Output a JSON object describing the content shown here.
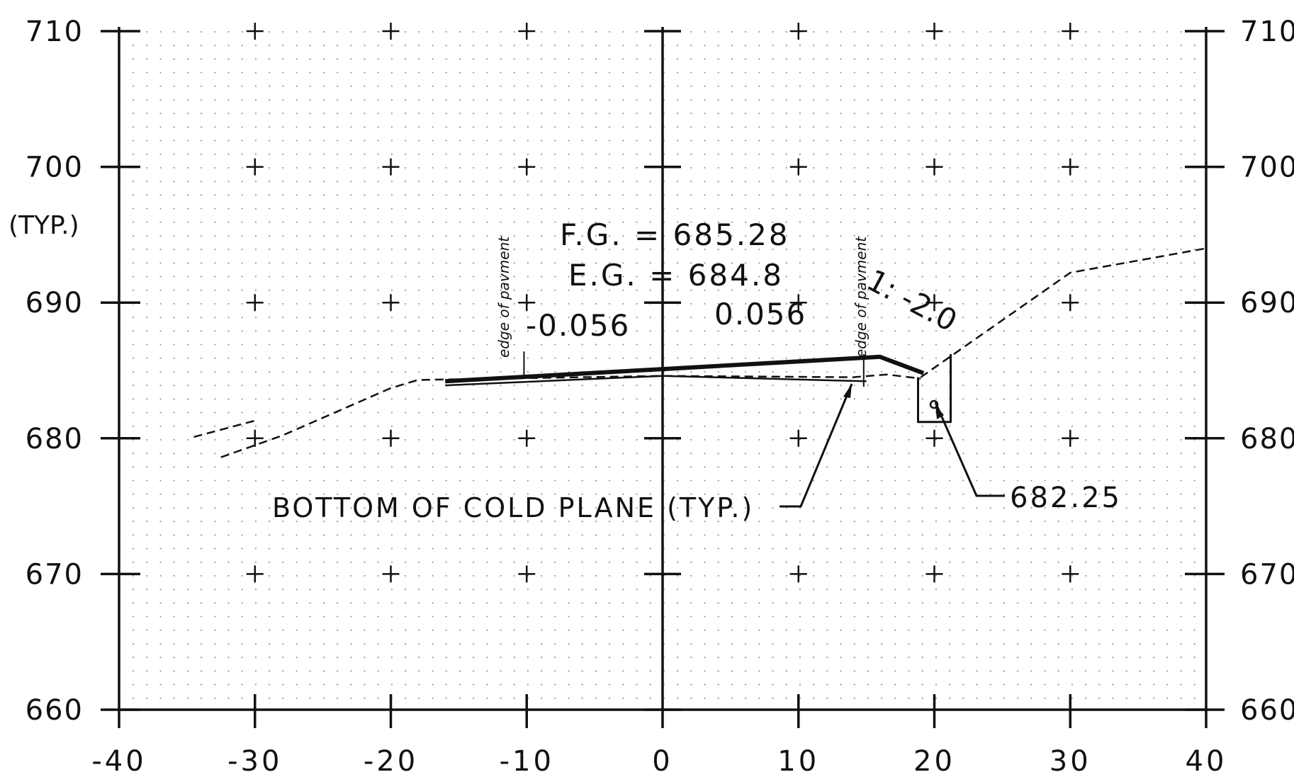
{
  "chart_data": {
    "type": "line",
    "title": "",
    "xlabel": "",
    "ylabel": "",
    "xlim": [
      -40,
      40
    ],
    "ylim": [
      660,
      710
    ],
    "x_ticks": [
      -40,
      -30,
      -20,
      -10,
      0,
      10,
      20,
      30,
      40
    ],
    "x_tick_labels": [
      "-40",
      "-30",
      "-20",
      "-10",
      "0",
      "10",
      "20",
      "30",
      "40"
    ],
    "y_ticks": [
      660,
      670,
      680,
      690,
      700,
      710
    ],
    "y_tick_labels": [
      "660",
      "670",
      "680",
      "690",
      "700",
      "710"
    ],
    "grid": "dotted",
    "series": [
      {
        "style": "solid-heavy",
        "x": [
          -16,
          0,
          16,
          19.2
        ],
        "y": [
          684.2,
          685.1,
          686.0,
          684.8
        ]
      },
      {
        "style": "solid-thin",
        "x": [
          -16,
          0,
          15
        ],
        "y": [
          683.9,
          684.6,
          684.2
        ]
      },
      {
        "style": "dashed",
        "x": [
          -32.5,
          -28,
          -20,
          -18,
          0,
          14,
          16.5,
          19
        ],
        "y": [
          678.6,
          680.2,
          683.7,
          684.3,
          684.6,
          684.5,
          684.7,
          684.4
        ]
      },
      {
        "style": "dashed",
        "x": [
          -34.5,
          -30
        ],
        "y": [
          680.1,
          681.3
        ]
      },
      {
        "style": "dashed",
        "x": [
          19,
          30,
          40
        ],
        "y": [
          684.5,
          692.2,
          694.0
        ]
      },
      {
        "style": "solid",
        "x": [
          18.8,
          18.8,
          21.2,
          21.2
        ],
        "y": [
          684.5,
          681.2,
          681.2,
          686.2
        ]
      }
    ]
  },
  "annotations": {
    "typ_label": "(TYP.)",
    "fg": "F.G. = 685.28",
    "eg": "E.G. = 684.8",
    "slope_left": "-0.056",
    "slope_right": "0.056",
    "side_slope": "1: -2.0",
    "edge_left": "edge of pavment",
    "edge_right": "edge of pavment",
    "cold_plane": "BOTTOM OF COLD PLANE (TYP.)",
    "elev_point": "682.25"
  }
}
